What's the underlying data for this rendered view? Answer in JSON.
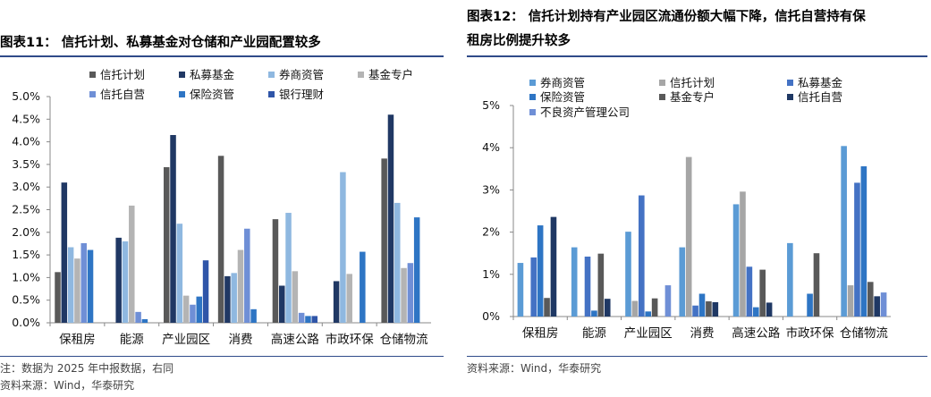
{
  "left": {
    "title": "图表11：  信托计划、私募基金对仓储和产业园配置较多",
    "note": "注：数据为 2025 年中报数据，右同",
    "source": "资料来源：Wind，华泰研究",
    "chart_data": {
      "type": "bar",
      "title": "图表11：信托计划、私募基金对仓储和产业园配置较多",
      "categories": [
        "保租房",
        "能源",
        "产业园区",
        "消费",
        "高速公路",
        "市政环保",
        "仓储物流"
      ],
      "y_tick_labels": [
        "0.0%",
        "0.5%",
        "1.0%",
        "1.5%",
        "2.0%",
        "2.5%",
        "3.0%",
        "3.5%",
        "4.0%",
        "4.5%",
        "5.0%"
      ],
      "ylim": [
        0,
        5
      ],
      "grid": false,
      "legend": "top",
      "series": [
        {
          "name": "信托计划",
          "color": "#595959",
          "values": [
            1.12,
            0.0,
            3.44,
            3.69,
            2.29,
            0.0,
            3.63
          ]
        },
        {
          "name": "私募基金",
          "color": "#203864",
          "values": [
            3.1,
            1.88,
            4.15,
            1.03,
            0.82,
            0.92,
            4.6
          ]
        },
        {
          "name": "券商资管",
          "color": "#8fb8e0",
          "values": [
            1.67,
            1.8,
            2.19,
            1.1,
            2.43,
            3.33,
            2.65
          ]
        },
        {
          "name": "基金专户",
          "color": "#b4b4b4",
          "values": [
            1.42,
            2.59,
            0.6,
            1.61,
            1.14,
            1.08,
            1.21
          ]
        },
        {
          "name": "信托自营",
          "color": "#6f8fd6",
          "values": [
            1.76,
            0.24,
            0.4,
            2.08,
            0.22,
            0.0,
            1.32
          ]
        },
        {
          "name": "保险资管",
          "color": "#2e75c4",
          "values": [
            1.61,
            0.08,
            0.58,
            0.3,
            0.15,
            1.57,
            2.33
          ]
        },
        {
          "name": "银行理财",
          "color": "#2f55a8",
          "values": [
            0.0,
            0.0,
            1.38,
            0.0,
            0.15,
            0.0,
            0.0
          ]
        }
      ]
    }
  },
  "right": {
    "title_line1": "图表12：  信托计划持有产业园区流通份额大幅下降，信托自营持有保",
    "title_line2": "租房比例提升较多",
    "source": "资料来源：Wind，华泰研究",
    "chart_data": {
      "type": "bar",
      "title": "图表12：信托计划持有产业园区流通份额大幅下降，信托自营持有保租房比例提升较多",
      "categories": [
        "保租房",
        "能源",
        "产业园区",
        "消费",
        "高速公路",
        "市政环保",
        "仓储物流"
      ],
      "y_tick_labels": [
        "0%",
        "1%",
        "2%",
        "3%",
        "4%",
        "5%"
      ],
      "ylim": [
        0,
        5
      ],
      "grid": false,
      "legend": "top",
      "series": [
        {
          "name": "券商资管",
          "color": "#5b9bd5",
          "values": [
            1.27,
            1.64,
            2.01,
            1.64,
            2.66,
            1.74,
            4.04
          ]
        },
        {
          "name": "信托计划",
          "color": "#a6a6a6",
          "values": [
            0.0,
            0.0,
            0.37,
            3.78,
            2.96,
            0.0,
            0.74
          ]
        },
        {
          "name": "私募基金",
          "color": "#4472c4",
          "values": [
            1.4,
            1.42,
            2.87,
            0.26,
            1.18,
            0.0,
            3.17
          ]
        },
        {
          "name": "保险资管",
          "color": "#2e75c4",
          "values": [
            2.16,
            0.14,
            0.12,
            0.54,
            0.22,
            0.54,
            3.56
          ]
        },
        {
          "name": "基金专户",
          "color": "#595959",
          "values": [
            0.44,
            1.49,
            0.43,
            0.36,
            1.11,
            1.5,
            0.82
          ]
        },
        {
          "name": "信托自营",
          "color": "#1f3864",
          "values": [
            2.36,
            0.42,
            0.0,
            0.34,
            0.33,
            0.0,
            0.48
          ]
        },
        {
          "name": "不良资产管理公司",
          "color": "#6f8fd6",
          "values": [
            0.0,
            0.0,
            0.74,
            0.0,
            0.0,
            0.0,
            0.57
          ]
        }
      ]
    }
  }
}
